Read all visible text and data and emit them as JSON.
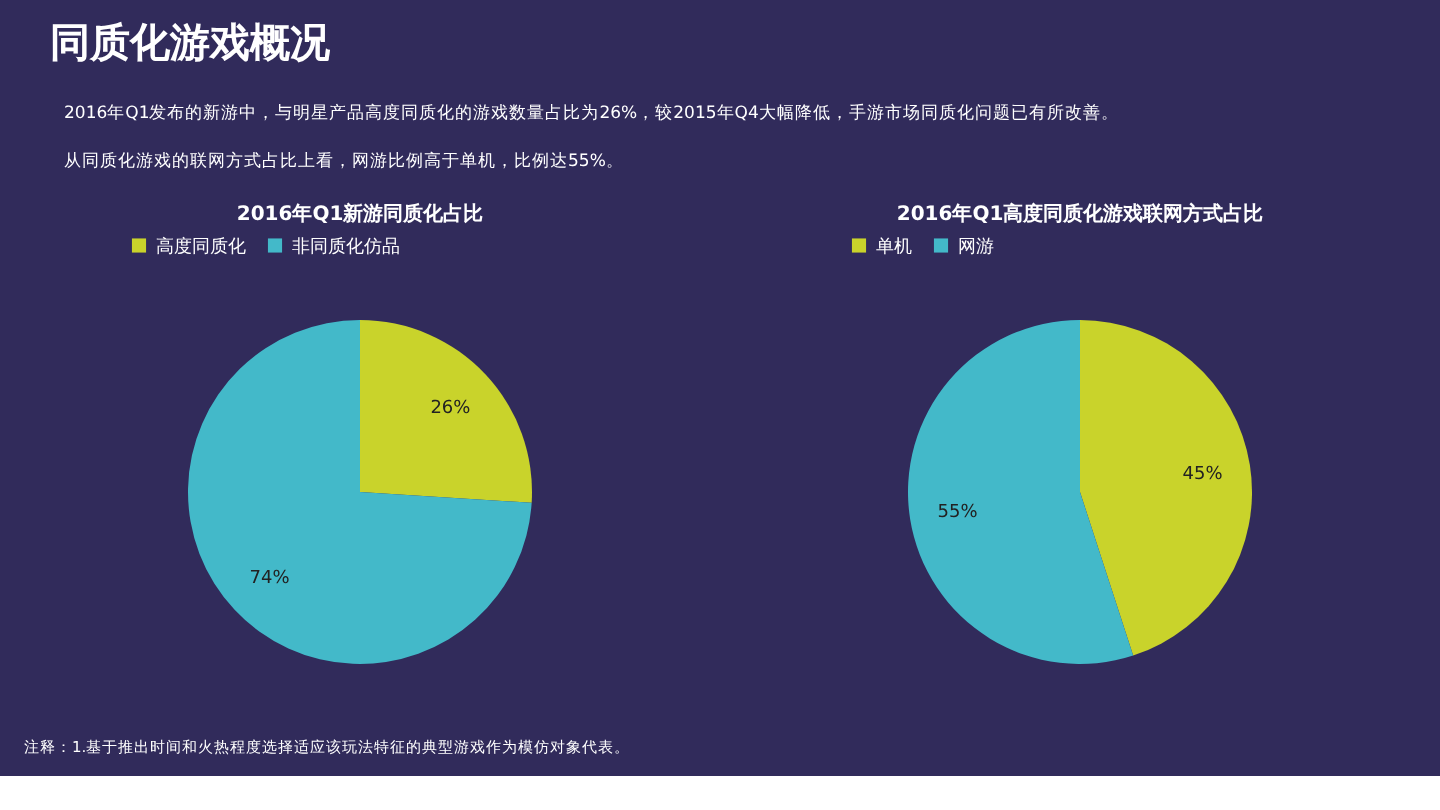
{
  "chart_data": [
    {
      "type": "pie",
      "title": "2016年Q1新游同质化占比",
      "categories": [
        "高度同质化",
        "非同质化仿品"
      ],
      "values": [
        26,
        74
      ],
      "colors": [
        "#c9d32b",
        "#43b9c9"
      ],
      "value_labels": [
        "26%",
        "74%"
      ],
      "legend": "top",
      "annotations": [
        "同质化游戏概况",
        "2016年Q1发布的新游中，与明星产品高度同质化的游戏数量占比为26%，较2015年Q4大幅降低，手游市场同质化问题已有所改善。",
        "从同质化游戏的联网方式占比上看，网游比例高于单机，比例达55%。"
      ]
    },
    {
      "type": "pie",
      "title": "2016年Q1高度同质化游戏联网方式占比",
      "categories": [
        "单机",
        "网游"
      ],
      "values": [
        45,
        55
      ],
      "colors": [
        "#c9d32b",
        "#43b9c9"
      ],
      "value_labels": [
        "45%",
        "55%"
      ],
      "legend": "top",
      "annotations": [
        "注释：1.基于推出时间和火热程度选择适应该玩法特征的典型游戏作为模仿对象代表。"
      ]
    }
  ]
}
